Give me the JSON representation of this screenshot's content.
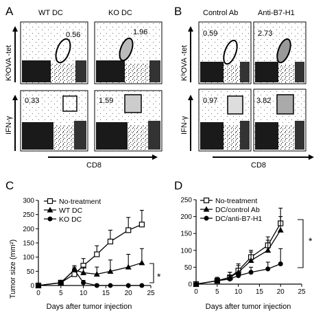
{
  "panels": {
    "A": {
      "letter": "A",
      "column_titles": [
        "WT  DC",
        "KO  DC"
      ],
      "y_labels": [
        "KᵇOVA -tet",
        "IFN-γ"
      ],
      "x_label": "CD8",
      "values_tet": [
        "0.56",
        "1.96"
      ],
      "values_ifn": [
        "0.33",
        "1.59"
      ]
    },
    "B": {
      "letter": "B",
      "column_titles": [
        "Control Ab",
        "Anti-B7-H1"
      ],
      "y_labels": [
        "KᵇOVA -tet",
        "IFN-γ"
      ],
      "x_label": "CD8",
      "values_tet": [
        "0.59",
        "2.73"
      ],
      "values_ifn": [
        "0.97",
        "3.82"
      ]
    },
    "C": {
      "letter": "C"
    },
    "D": {
      "letter": "D"
    }
  },
  "chart_data": [
    {
      "panel": "C",
      "type": "line",
      "xlabel": "Days after tumor injection",
      "ylabel": "Tumor size (mm²)",
      "xlim": [
        0,
        25
      ],
      "ylim": [
        0,
        300
      ],
      "xticks": [
        "0",
        "5",
        "10",
        "15",
        "20",
        "25"
      ],
      "yticks": [
        "0",
        "50",
        "100",
        "150",
        "200",
        "250",
        "300"
      ],
      "significance": "*",
      "series": [
        {
          "name": "No-treatment",
          "marker": "square-open",
          "x": [
            0,
            5,
            8,
            10,
            13,
            16,
            20,
            23
          ],
          "y": [
            0,
            10,
            40,
            70,
            110,
            155,
            195,
            215
          ],
          "err": [
            0,
            5,
            15,
            25,
            30,
            40,
            45,
            50
          ]
        },
        {
          "name": "WT DC",
          "marker": "triangle",
          "x": [
            0,
            5,
            8,
            10,
            13,
            16,
            20,
            23
          ],
          "y": [
            0,
            10,
            55,
            45,
            40,
            50,
            65,
            80
          ],
          "err": [
            0,
            5,
            15,
            20,
            25,
            40,
            45,
            50
          ]
        },
        {
          "name": "KO DC",
          "marker": "circle",
          "x": [
            0,
            5,
            8,
            10,
            13,
            16,
            20,
            23
          ],
          "y": [
            0,
            10,
            55,
            10,
            0,
            0,
            0,
            0
          ],
          "err": [
            0,
            5,
            10,
            8,
            5,
            0,
            0,
            0
          ]
        }
      ]
    },
    {
      "panel": "D",
      "type": "line",
      "xlabel": "Days after tumor injection",
      "ylabel": "",
      "xlim": [
        0,
        25
      ],
      "ylim": [
        0,
        250
      ],
      "xticks": [
        "0",
        "5",
        "10",
        "15",
        "20",
        "25"
      ],
      "yticks": [
        "0",
        "50",
        "100",
        "150",
        "200",
        "250"
      ],
      "significance": "*",
      "series": [
        {
          "name": "No-treatment",
          "marker": "square-open",
          "x": [
            0,
            5,
            8,
            10,
            13,
            17,
            20
          ],
          "y": [
            0,
            10,
            20,
            40,
            80,
            115,
            180
          ],
          "err": [
            0,
            10,
            15,
            20,
            20,
            25,
            45
          ]
        },
        {
          "name": "DC/control Ab",
          "marker": "triangle",
          "x": [
            0,
            5,
            8,
            10,
            13,
            17,
            20
          ],
          "y": [
            0,
            10,
            20,
            35,
            70,
            100,
            160
          ],
          "err": [
            0,
            10,
            15,
            20,
            25,
            30,
            40
          ]
        },
        {
          "name": "DC/anti-B7-H1",
          "marker": "circle",
          "x": [
            0,
            5,
            8,
            10,
            13,
            17,
            20
          ],
          "y": [
            0,
            10,
            15,
            25,
            35,
            45,
            60
          ],
          "err": [
            0,
            5,
            10,
            10,
            15,
            20,
            45
          ]
        }
      ]
    }
  ]
}
